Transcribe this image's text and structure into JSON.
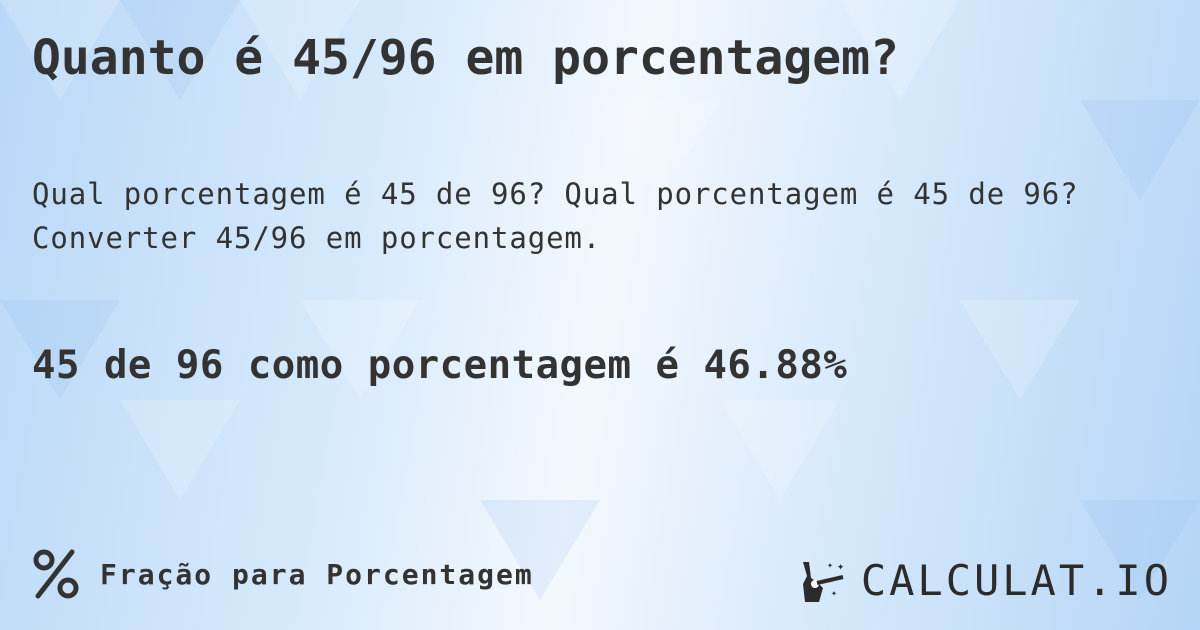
{
  "title": "Quanto é 45/96 em porcentagem?",
  "subtitle_line1": "Qual porcentagem é 45 de 96? Qual porcentagem é 45 de 96?",
  "subtitle_line2": "Converter 45/96 em porcentagem.",
  "result": "45 de 96 como porcentagem é 46.88%",
  "footer": {
    "icon": "percent-icon",
    "label": "Fração para Porcentagem"
  },
  "logo": {
    "text": "CALCULAT.IO",
    "icon": "magic-hand-icon"
  }
}
